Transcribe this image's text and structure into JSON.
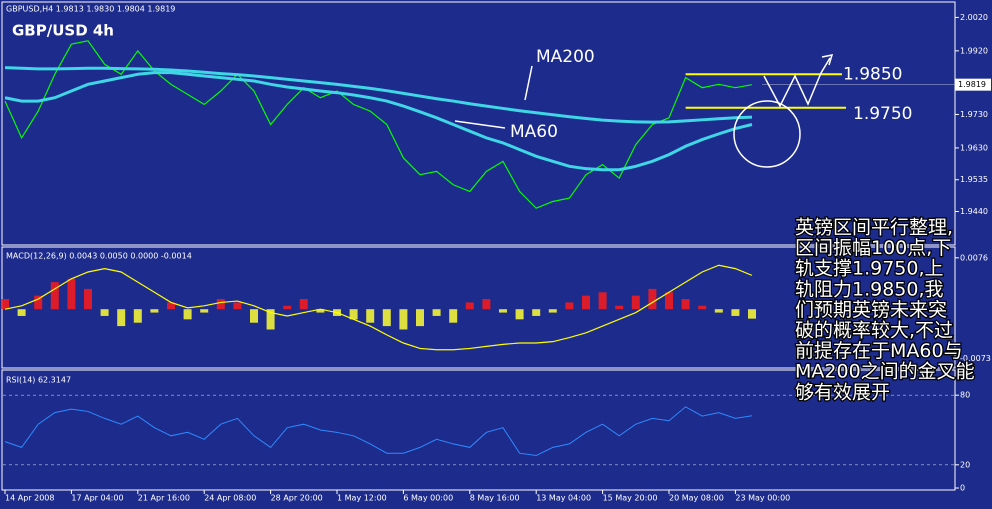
{
  "chart_data": [
    {
      "type": "line",
      "title": "GBPUSD,H4  1.9813 1.9830 1.9804 1.9819",
      "label": "GBP/USD 4h",
      "categories": [
        "14 Apr 2008",
        null,
        null,
        null,
        "17 Apr 04:00",
        null,
        null,
        null,
        "21 Apr 16:00",
        null,
        null,
        null,
        "24 Apr 08:00",
        null,
        null,
        null,
        "28 Apr 20:00",
        null,
        null,
        null,
        "1 May 12:00",
        null,
        null,
        null,
        "6 May 00:00",
        null,
        null,
        null,
        "8 May 16:00",
        null,
        null,
        null,
        "13 May 04:00",
        null,
        null,
        null,
        "15 May 20:00",
        null,
        null,
        null,
        "20 May 08:00",
        null,
        null,
        null,
        "23 May 00:00",
        null
      ],
      "series": [
        {
          "color": "#00ff00",
          "values": [
            1.977,
            1.966,
            1.974,
            1.985,
            1.994,
            1.995,
            1.988,
            1.985,
            1.992,
            1.986,
            1.982,
            1.979,
            1.976,
            1.98,
            1.985,
            1.98,
            1.97,
            1.976,
            1.981,
            1.978,
            1.98,
            1.976,
            1.974,
            1.97,
            1.96,
            1.955,
            1.956,
            1.952,
            1.95,
            1.956,
            1.959,
            1.95,
            1.945,
            1.947,
            1.948,
            1.955,
            1.958,
            1.954,
            1.964,
            1.97,
            1.972,
            1.984,
            1.981,
            1.982,
            1.981,
            1.9819
          ]
        },
        {
          "name": "MA60",
          "color": "#3fd6e6",
          "values": [
            1.978,
            1.977,
            1.977,
            1.978,
            1.98,
            1.982,
            1.983,
            1.984,
            1.985,
            1.9855,
            1.9855,
            1.985,
            1.9845,
            1.984,
            1.9835,
            1.983,
            1.982,
            1.9812,
            1.9806,
            1.98,
            1.9795,
            1.9788,
            1.978,
            1.977,
            1.9755,
            1.9738,
            1.972,
            1.97,
            1.968,
            1.966,
            1.9645,
            1.9625,
            1.9605,
            1.959,
            1.9575,
            1.9568,
            1.9565,
            1.9565,
            1.9575,
            1.959,
            1.961,
            1.9635,
            1.9655,
            1.9672,
            1.9688,
            1.97
          ]
        },
        {
          "name": "MA200",
          "color": "#3fd6e6",
          "values": [
            1.987,
            1.9868,
            1.9866,
            1.9866,
            1.9867,
            1.9868,
            1.9868,
            1.9867,
            1.9866,
            1.9865,
            1.9863,
            1.986,
            1.9856,
            1.9852,
            1.9849,
            1.9845,
            1.984,
            1.9835,
            1.983,
            1.9825,
            1.982,
            1.9814,
            1.9808,
            1.9801,
            1.9793,
            1.9785,
            1.9777,
            1.977,
            1.9762,
            1.9755,
            1.9748,
            1.9741,
            1.9735,
            1.9729,
            1.9723,
            1.9718,
            1.9713,
            1.971,
            1.9708,
            1.9707,
            1.9708,
            1.9711,
            1.9714,
            1.9717,
            1.972,
            1.9722
          ]
        }
      ],
      "levels": [
        {
          "value": 1.985,
          "label": "1.9850"
        },
        {
          "value": 1.975,
          "label": "1.9750"
        }
      ],
      "level_color": "#ffff00",
      "price_label": {
        "value": 1.9819,
        "label": "1.9819"
      },
      "ylim": [
        1.934,
        2.006
      ],
      "yticks": [
        {
          "value": 2.002,
          "label": "2.0020"
        },
        {
          "value": 1.992,
          "label": "1.9920"
        },
        {
          "value": 1.973,
          "label": "1.9730"
        },
        {
          "value": 1.963,
          "label": "1.9630"
        },
        {
          "value": 1.9535,
          "label": "1.9535"
        },
        {
          "value": 1.944,
          "label": "1.9440"
        }
      ],
      "annotations": [
        "英镑区间平行整理,",
        "区间振幅100点,下",
        "轨支撑1.9750,上",
        "轨阻力1.9850,我",
        "们预期英镑未来突",
        "破的概率较大,不过",
        "前提存在于MA60与",
        "MA200之间的金叉能",
        "够有效展开"
      ]
    },
    {
      "type": "macd",
      "title": "MACD(12,26,9) 0.0043 0.0050 0.0000 -0.0014",
      "histogram": {
        "positive_color": "#ff1a1a",
        "negative_color": "#ffff33",
        "values": [
          0.0015,
          -0.001,
          0.002,
          0.004,
          0.0045,
          0.003,
          -0.001,
          -0.0025,
          -0.002,
          -0.0005,
          0.001,
          -0.0015,
          -0.0005,
          0.0015,
          0.001,
          -0.002,
          -0.003,
          0.0005,
          0.0015,
          -0.0005,
          -0.001,
          -0.0015,
          -0.002,
          -0.0025,
          -0.003,
          -0.0025,
          -0.001,
          -0.002,
          0.001,
          0.0015,
          -0.0005,
          -0.0015,
          -0.001,
          -0.0005,
          0.001,
          0.002,
          0.0025,
          0.0005,
          0.002,
          0.003,
          0.0025,
          0.0015,
          0.0005,
          -0.0005,
          -0.001,
          -0.0014
        ]
      },
      "signal": {
        "color": "#ffff00",
        "values": [
          0.0,
          0.0005,
          0.0015,
          0.003,
          0.0045,
          0.0055,
          0.006,
          0.0055,
          0.004,
          0.0025,
          0.001,
          0.0002,
          0.0005,
          0.001,
          0.0012,
          0.0005,
          -0.0005,
          -0.001,
          -0.0005,
          0.0,
          -0.0005,
          -0.0015,
          -0.0025,
          -0.0038,
          -0.005,
          -0.0058,
          -0.006,
          -0.006,
          -0.0058,
          -0.0055,
          -0.0052,
          -0.005,
          -0.005,
          -0.0048,
          -0.0042,
          -0.0035,
          -0.0025,
          -0.0015,
          -0.0005,
          0.001,
          0.0025,
          0.004,
          0.0055,
          0.0065,
          0.006,
          0.005
        ]
      },
      "ylim": [
        -0.0084,
        0.0089
      ],
      "yticks": [
        0.0076,
        -0.0073
      ]
    },
    {
      "type": "rsi",
      "title": "RSI(14) 62.3147",
      "series": [
        {
          "color": "#2e8bff",
          "values": [
            40,
            35,
            55,
            65,
            68,
            66,
            60,
            55,
            62,
            52,
            45,
            48,
            42,
            55,
            60,
            45,
            35,
            52,
            55,
            50,
            48,
            45,
            38,
            30,
            30,
            35,
            42,
            38,
            35,
            48,
            52,
            30,
            28,
            35,
            38,
            48,
            55,
            45,
            55,
            60,
            58,
            70,
            62,
            65,
            60,
            62.3147
          ]
        }
      ],
      "levels": [
        80,
        20
      ],
      "ylim": [
        0,
        100
      ],
      "yticks": [
        80,
        20,
        0
      ]
    }
  ]
}
